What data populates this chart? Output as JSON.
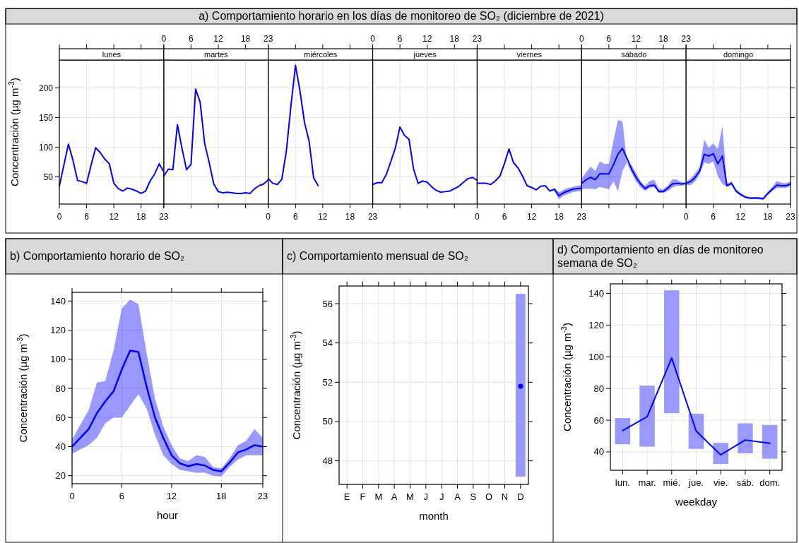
{
  "chart_data": [
    {
      "type": "other",
      "title": "a) Comportamiento horario en los días de monitoreo de SO₂ (diciembre de 2021)"
    },
    {
      "type": "line",
      "subtitle": "lunes",
      "ylabel": "Concentración (µg m$^{-3}$)",
      "xlim": [
        0,
        23
      ],
      "xticks": [
        0,
        6,
        12,
        18,
        23
      ],
      "ylim": [
        4,
        247
      ],
      "yticks": [
        50,
        100,
        150,
        200
      ],
      "grid": true,
      "x": [
        0,
        1,
        2,
        3,
        4,
        5,
        6,
        7,
        8,
        9,
        10,
        11,
        12,
        13,
        14,
        15,
        16,
        17,
        18,
        19,
        20,
        21,
        22,
        23
      ],
      "series": [
        {
          "color": "#0000ff",
          "values": [
            34,
            70,
            105,
            78,
            44,
            42,
            39,
            70,
            99,
            91,
            80,
            72,
            39,
            30,
            26,
            31,
            29,
            26,
            22,
            26,
            43,
            55,
            72,
            58
          ]
        }
      ]
    },
    {
      "type": "line",
      "subtitle": "martes",
      "xlim": [
        0,
        23
      ],
      "xticks": [
        0,
        6,
        12,
        18,
        23
      ],
      "ylim": [
        4,
        247
      ],
      "yticks": [
        50,
        100,
        150,
        200
      ],
      "tick_labels": "x",
      "grid": true,
      "x": [
        0,
        1,
        2,
        3,
        4,
        5,
        6,
        7,
        8,
        9,
        10,
        11,
        12,
        13,
        14,
        15,
        16,
        17,
        18,
        19,
        20,
        21,
        22,
        23
      ],
      "series": [
        {
          "color": "#0000ff",
          "values": [
            51,
            63,
            62,
            138,
            98,
            62,
            71,
            198,
            176,
            106,
            74,
            38,
            25,
            23,
            24,
            23,
            22,
            22,
            23,
            22,
            30,
            35,
            38,
            45
          ]
        }
      ]
    },
    {
      "type": "line",
      "subtitle": "miércoles",
      "xlim": [
        0,
        23
      ],
      "xticks": [
        0,
        6,
        12,
        18,
        23
      ],
      "ylim": [
        4,
        247
      ],
      "yticks": [
        50,
        100,
        150,
        200
      ],
      "tick_labels": "x",
      "grid": true,
      "x": [
        0,
        1,
        2,
        3,
        4,
        5,
        6,
        7,
        8,
        9,
        10,
        11
      ],
      "series": [
        {
          "color": "#0000ff",
          "values": [
            47,
            39,
            37,
            46,
            94,
            170,
            238,
            194,
            141,
            110,
            48,
            35
          ]
        }
      ]
    },
    {
      "type": "line",
      "subtitle": "jueves",
      "xlim": [
        0,
        23
      ],
      "xticks": [
        0,
        6,
        12,
        18,
        23
      ],
      "ylim": [
        4,
        247
      ],
      "yticks": [
        50,
        100,
        150,
        200
      ],
      "tick_labels": "x",
      "grid": true,
      "x": [
        0,
        1,
        2,
        3,
        4,
        5,
        6,
        7,
        8,
        9,
        10,
        11,
        12,
        13,
        14,
        15,
        16,
        17,
        18,
        19,
        20,
        21,
        22,
        23
      ],
      "series": [
        {
          "color": "#0000ff",
          "values": [
            37,
            40,
            40,
            54,
            76,
            99,
            134,
            120,
            113,
            63,
            39,
            43,
            41,
            33,
            27,
            24,
            25,
            26,
            30,
            34,
            41,
            47,
            49,
            44
          ]
        }
      ]
    },
    {
      "type": "line",
      "subtitle": "viernes",
      "xlim": [
        0,
        23
      ],
      "xticks": [
        0,
        6,
        12,
        18,
        23
      ],
      "ylim": [
        4,
        247
      ],
      "yticks": [
        50,
        100,
        150,
        200
      ],
      "tick_labels": "x",
      "grid": true,
      "x": [
        0,
        1,
        2,
        3,
        4,
        5,
        6,
        7,
        8,
        9,
        10,
        11,
        12,
        13,
        14,
        15,
        16,
        17,
        18,
        19,
        20,
        21,
        22,
        23
      ],
      "series": [
        {
          "color": "#0000ff",
          "values": [
            39,
            39,
            39,
            37,
            43,
            51,
            72,
            97,
            74,
            65,
            51,
            35,
            32,
            28,
            34,
            35,
            26,
            29,
            18,
            23,
            26,
            29,
            30,
            31
          ],
          "lower": [
            null,
            null,
            null,
            null,
            null,
            null,
            null,
            null,
            null,
            null,
            null,
            null,
            null,
            null,
            null,
            null,
            null,
            26,
            12,
            18,
            21,
            24,
            25,
            26
          ],
          "upper": [
            null,
            null,
            null,
            null,
            null,
            null,
            null,
            null,
            null,
            null,
            null,
            null,
            null,
            null,
            null,
            null,
            null,
            32,
            24,
            28,
            31,
            33,
            35,
            36
          ]
        }
      ]
    },
    {
      "type": "line",
      "subtitle": "sábado",
      "xlim": [
        0,
        23
      ],
      "xticks": [
        0,
        6,
        12,
        18,
        23
      ],
      "ylim": [
        4,
        247
      ],
      "yticks": [
        50,
        100,
        150,
        200
      ],
      "tick_labels": "x",
      "grid": true,
      "x": [
        0,
        1,
        2,
        3,
        4,
        5,
        6,
        7,
        8,
        9,
        10,
        11,
        12,
        13,
        14,
        15,
        16,
        17,
        18,
        19,
        20,
        21,
        22,
        23
      ],
      "series": [
        {
          "color": "#0000ff",
          "values": [
            39,
            45,
            49,
            45,
            55,
            55,
            55,
            70,
            88,
            98,
            81,
            63,
            49,
            38,
            30,
            35,
            36,
            25,
            25,
            31,
            38,
            39,
            38,
            39
          ],
          "lower": [
            29,
            30,
            30,
            29,
            33,
            31,
            29,
            42,
            26,
            60,
            74,
            56,
            42,
            32,
            26,
            31,
            33,
            23,
            23,
            26,
            32,
            35,
            35,
            36
          ],
          "upper": [
            47,
            58,
            67,
            60,
            76,
            72,
            72,
            110,
            146,
            143,
            74,
            70,
            56,
            42,
            35,
            43,
            45,
            30,
            29,
            35,
            46,
            45,
            41,
            40
          ]
        }
      ]
    },
    {
      "type": "line",
      "subtitle": "domingo",
      "xlim": [
        0,
        23
      ],
      "xticks": [
        0,
        6,
        12,
        18,
        23
      ],
      "ylim": [
        4,
        247
      ],
      "yticks": [
        50,
        100,
        150,
        200
      ],
      "tick_labels": "x",
      "grid": true,
      "x": [
        0,
        1,
        2,
        3,
        4,
        5,
        6,
        7,
        8,
        9,
        10,
        11,
        12,
        13,
        14,
        15,
        16,
        17,
        18,
        19,
        20,
        21,
        22,
        23
      ],
      "series": [
        {
          "color": "#0000ff",
          "values": [
            39,
            42,
            49,
            60,
            88,
            85,
            89,
            72,
            85,
            35,
            39,
            26,
            20,
            16,
            14,
            14,
            14,
            13,
            22,
            29,
            36,
            35,
            35,
            38
          ],
          "lower": [
            36,
            36,
            42,
            54,
            74,
            72,
            76,
            51,
            38,
            33,
            36,
            23,
            18,
            14,
            12,
            12,
            12,
            11,
            19,
            26,
            31,
            31,
            31,
            34
          ],
          "upper": [
            42,
            47,
            56,
            65,
            113,
            99,
            106,
            97,
            135,
            38,
            42,
            29,
            23,
            18,
            16,
            16,
            16,
            15,
            25,
            33,
            43,
            40,
            39,
            42
          ]
        }
      ]
    },
    {
      "type": "line",
      "title": "b) Comportamiento horario de SO₂",
      "xlabel": "hour",
      "ylabel": "Concentración (µg m$^{-3}$)",
      "xlim": [
        0,
        23
      ],
      "xticks": [
        0,
        6,
        12,
        18,
        23
      ],
      "ylim": [
        14.5,
        146
      ],
      "yticks": [
        20,
        40,
        60,
        80,
        100,
        120,
        140
      ],
      "grid": true,
      "x": [
        0,
        1,
        2,
        3,
        4,
        5,
        6,
        7,
        8,
        9,
        10,
        11,
        12,
        13,
        14,
        15,
        16,
        17,
        18,
        19,
        20,
        21,
        22,
        23
      ],
      "series": [
        {
          "color": "#0000ff",
          "values": [
            40,
            46,
            52,
            63,
            71,
            78,
            93,
            106,
            105,
            81,
            60,
            46,
            34,
            28.5,
            26.5,
            28,
            27,
            24,
            23,
            29,
            36,
            38,
            41,
            40
          ],
          "lower": [
            35,
            38,
            41,
            46,
            56,
            60,
            60,
            68,
            76,
            66,
            48,
            34,
            28,
            24,
            23,
            22,
            22,
            20,
            19.5,
            26,
            31,
            34,
            34,
            34
          ],
          "upper": [
            45,
            55,
            65,
            84,
            85,
            106,
            135,
            141,
            138,
            104,
            73,
            54,
            41,
            32,
            30,
            34,
            33,
            26,
            25,
            32,
            41,
            44,
            52,
            46
          ]
        }
      ]
    },
    {
      "type": "line",
      "title": "c) Comportamiento mensual de SO₂",
      "xlabel": "month",
      "ylabel": "Concentración (µg m$^{-3}$)",
      "categories": [
        "E",
        "F",
        "M",
        "A",
        "M",
        "J",
        "J",
        "A",
        "S",
        "O",
        "N",
        "D"
      ],
      "ylim": [
        46.8,
        56.9
      ],
      "yticks": [
        48,
        50,
        52,
        54,
        56
      ],
      "grid": true,
      "marker": "circle",
      "series": [
        {
          "type": "bar",
          "color": "#9999ff",
          "base": [
            null,
            null,
            null,
            null,
            null,
            null,
            null,
            null,
            null,
            null,
            null,
            47.2
          ],
          "values": [
            null,
            null,
            null,
            null,
            null,
            null,
            null,
            null,
            null,
            null,
            null,
            9.3
          ]
        },
        {
          "color": "#0000ff",
          "values": [
            null,
            null,
            null,
            null,
            null,
            null,
            null,
            null,
            null,
            null,
            null,
            51.8
          ]
        }
      ]
    },
    {
      "type": "line",
      "title": "d) Comportamiento en días de monitoreo semana de SO₂",
      "xlabel": "weekday",
      "ylabel": "Concentración (µg m$^{-3}$)",
      "categories": [
        "lun.",
        "mar.",
        "mié.",
        "jue.",
        "vie.",
        "sáb.",
        "dom."
      ],
      "ylim": [
        28.4,
        146
      ],
      "yticks": [
        40,
        60,
        80,
        100,
        120,
        140
      ],
      "grid": true,
      "series": [
        {
          "type": "bar",
          "color": "#9999ff",
          "base": [
            44.8,
            43.3,
            64.4,
            41.9,
            32.4,
            39.1,
            35.7
          ],
          "values": [
            16.5,
            38.5,
            77.5,
            22.2,
            13.3,
            18.9,
            21.3
          ]
        },
        {
          "color": "#0000ff",
          "values": [
            53.4,
            62.2,
            99.2,
            53.1,
            38.1,
            47.5,
            45.4
          ]
        }
      ]
    }
  ]
}
